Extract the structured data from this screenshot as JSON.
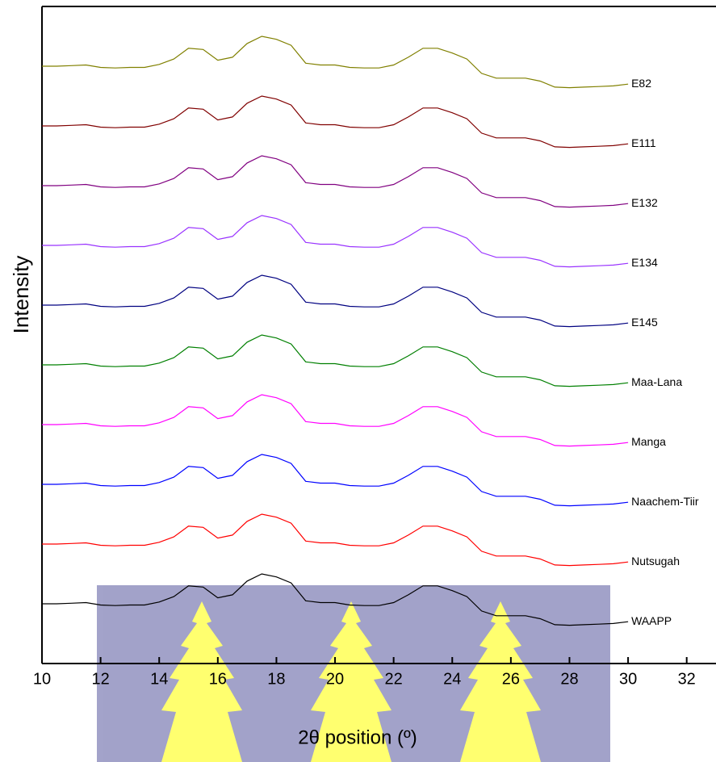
{
  "chart_data": {
    "type": "line",
    "y_label": "Intensity",
    "x_label": "2θ position (º)",
    "x": [
      10,
      10.5,
      11,
      11.5,
      12,
      12.5,
      13,
      13.5,
      14,
      14.5,
      15,
      15.5,
      16,
      16.5,
      17,
      17.5,
      18,
      18.5,
      19,
      19.5,
      20,
      20.5,
      21,
      21.5,
      22,
      22.5,
      23,
      23.5,
      24,
      24.5,
      25,
      25.5,
      26,
      26.5,
      27,
      27.5,
      28,
      28.5,
      29,
      29.5,
      30
    ],
    "xlim": [
      10,
      33
    ],
    "xticks": [
      10,
      12,
      14,
      16,
      18,
      20,
      22,
      24,
      26,
      28,
      30,
      32
    ],
    "ylim": [
      -1,
      10
    ],
    "series": [
      {
        "name": "E82",
        "color": "#808000",
        "values": [
          9,
          9,
          9.01,
          9.02,
          8.98,
          8.97,
          8.98,
          8.98,
          9.03,
          9.12,
          9.3,
          9.28,
          9.1,
          9.15,
          9.38,
          9.5,
          9.45,
          9.35,
          9.05,
          9.02,
          9.02,
          8.98,
          8.97,
          8.97,
          9.02,
          9.15,
          9.3,
          9.3,
          9.22,
          9.12,
          8.88,
          8.8,
          8.8,
          8.8,
          8.75,
          8.65,
          8.64,
          8.65,
          8.66,
          8.67,
          8.7
        ]
      },
      {
        "name": "E111",
        "color": "#800000",
        "values": [
          8,
          8,
          8.01,
          8.02,
          7.98,
          7.97,
          7.98,
          7.98,
          8.03,
          8.12,
          8.3,
          8.28,
          8.1,
          8.15,
          8.38,
          8.5,
          8.45,
          8.35,
          8.05,
          8.02,
          8.02,
          7.98,
          7.97,
          7.97,
          8.02,
          8.15,
          8.3,
          8.3,
          8.22,
          8.12,
          7.88,
          7.8,
          7.8,
          7.8,
          7.75,
          7.65,
          7.64,
          7.65,
          7.66,
          7.67,
          7.7
        ]
      },
      {
        "name": "E132",
        "color": "#800080",
        "values": [
          7,
          7,
          7.01,
          7.02,
          6.98,
          6.97,
          6.98,
          6.98,
          7.03,
          7.12,
          7.3,
          7.28,
          7.1,
          7.15,
          7.38,
          7.5,
          7.45,
          7.35,
          7.05,
          7.02,
          7.02,
          6.98,
          6.97,
          6.97,
          7.02,
          7.15,
          7.3,
          7.3,
          7.22,
          7.12,
          6.88,
          6.8,
          6.8,
          6.8,
          6.75,
          6.65,
          6.64,
          6.65,
          6.66,
          6.67,
          6.7
        ]
      },
      {
        "name": "E134",
        "color": "#9933ff",
        "values": [
          6,
          6,
          6.01,
          6.02,
          5.98,
          5.97,
          5.98,
          5.98,
          6.03,
          6.12,
          6.3,
          6.28,
          6.1,
          6.15,
          6.38,
          6.5,
          6.45,
          6.35,
          6.05,
          6.02,
          6.02,
          5.98,
          5.97,
          5.97,
          6.02,
          6.15,
          6.3,
          6.3,
          6.22,
          6.12,
          5.88,
          5.8,
          5.8,
          5.8,
          5.75,
          5.65,
          5.64,
          5.65,
          5.66,
          5.67,
          5.7
        ]
      },
      {
        "name": "E145",
        "color": "#000080",
        "values": [
          5,
          5,
          5.01,
          5.02,
          4.98,
          4.97,
          4.98,
          4.98,
          5.03,
          5.12,
          5.3,
          5.28,
          5.1,
          5.15,
          5.38,
          5.5,
          5.45,
          5.35,
          5.05,
          5.02,
          5.02,
          4.98,
          4.97,
          4.97,
          5.02,
          5.15,
          5.3,
          5.3,
          5.22,
          5.12,
          4.88,
          4.8,
          4.8,
          4.8,
          4.75,
          4.65,
          4.64,
          4.65,
          4.66,
          4.67,
          4.7
        ]
      },
      {
        "name": "Maa-Lana",
        "color": "#008000",
        "values": [
          4,
          4,
          4.01,
          4.02,
          3.98,
          3.97,
          3.98,
          3.98,
          4.03,
          4.12,
          4.3,
          4.28,
          4.1,
          4.15,
          4.38,
          4.5,
          4.45,
          4.35,
          4.05,
          4.02,
          4.02,
          3.98,
          3.97,
          3.97,
          4.02,
          4.15,
          4.3,
          4.3,
          4.22,
          4.12,
          3.88,
          3.8,
          3.8,
          3.8,
          3.75,
          3.65,
          3.64,
          3.65,
          3.66,
          3.67,
          3.7
        ]
      },
      {
        "name": "Manga",
        "color": "#ff00ff",
        "values": [
          3,
          3,
          3.01,
          3.02,
          2.98,
          2.97,
          2.98,
          2.98,
          3.03,
          3.12,
          3.3,
          3.28,
          3.1,
          3.15,
          3.38,
          3.5,
          3.45,
          3.35,
          3.05,
          3.02,
          3.02,
          2.98,
          2.97,
          2.97,
          3.02,
          3.15,
          3.3,
          3.3,
          3.22,
          3.12,
          2.88,
          2.8,
          2.8,
          2.8,
          2.75,
          2.65,
          2.64,
          2.65,
          2.66,
          2.67,
          2.7
        ]
      },
      {
        "name": "Naachem-Tiir",
        "color": "#0000ff",
        "values": [
          2,
          2,
          2.01,
          2.02,
          1.98,
          1.97,
          1.98,
          1.98,
          2.03,
          2.12,
          2.3,
          2.28,
          2.1,
          2.15,
          2.38,
          2.5,
          2.45,
          2.35,
          2.05,
          2.02,
          2.02,
          1.98,
          1.97,
          1.97,
          2.02,
          2.15,
          2.3,
          2.3,
          2.22,
          2.12,
          1.88,
          1.8,
          1.8,
          1.8,
          1.75,
          1.65,
          1.64,
          1.65,
          1.66,
          1.67,
          1.7
        ]
      },
      {
        "name": "Nutsugah",
        "color": "#ff0000",
        "values": [
          1,
          1,
          1.01,
          1.02,
          0.98,
          0.97,
          0.98,
          0.98,
          1.03,
          1.12,
          1.3,
          1.28,
          1.1,
          1.15,
          1.38,
          1.5,
          1.45,
          1.35,
          1.05,
          1.02,
          1.02,
          0.98,
          0.97,
          0.97,
          1.02,
          1.15,
          1.3,
          1.3,
          1.22,
          1.12,
          0.88,
          0.8,
          0.8,
          0.8,
          0.75,
          0.65,
          0.64,
          0.65,
          0.66,
          0.67,
          0.7
        ]
      },
      {
        "name": "WAAPP",
        "color": "#000000",
        "values": [
          0,
          0,
          0.01,
          0.02,
          -0.02,
          -0.03,
          -0.02,
          -0.02,
          0.03,
          0.12,
          0.3,
          0.28,
          0.1,
          0.15,
          0.38,
          0.5,
          0.45,
          0.35,
          0.05,
          0.02,
          0.02,
          -0.02,
          -0.03,
          -0.03,
          0.02,
          0.15,
          0.3,
          0.3,
          0.22,
          0.12,
          -0.12,
          -0.2,
          -0.2,
          -0.2,
          -0.25,
          -0.35,
          -0.36,
          -0.35,
          -0.34,
          -0.33,
          -0.3
        ]
      }
    ]
  }
}
